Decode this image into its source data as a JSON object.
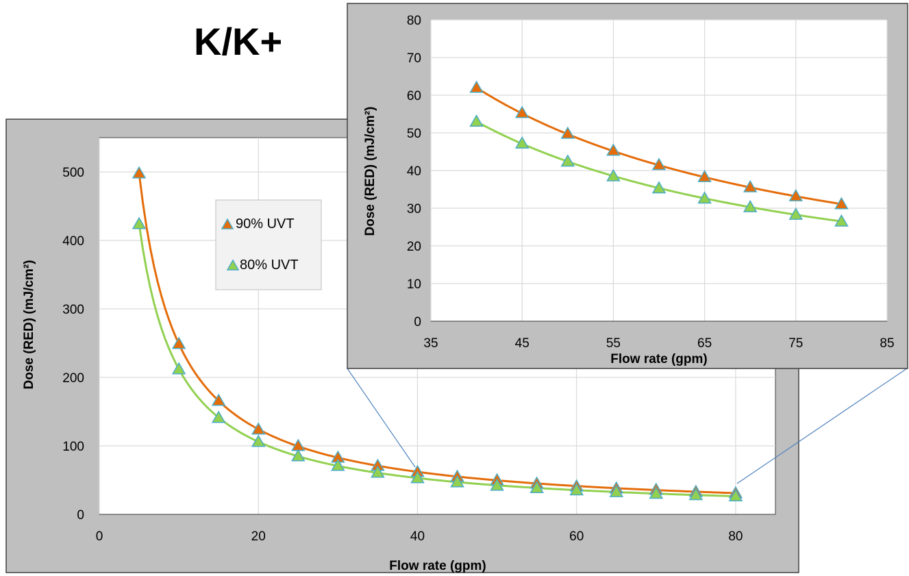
{
  "page_title": "K/K+",
  "colors": {
    "frame_fill": "#bfbfbf",
    "plot_fill": "#ffffff",
    "grid": "#d9d9d9",
    "series_90_line": "#e46c0a",
    "series_80_line": "#92d050",
    "marker_edge": "#4bacc6",
    "zoom_connector": "#4f81bd"
  },
  "legend": {
    "items": [
      "90% UVT",
      "80% UVT"
    ],
    "placement": "inside-upper-middle"
  },
  "chart_data": [
    {
      "type": "scatter",
      "name": "main",
      "xlabel": "Flow rate (gpm)",
      "ylabel": "Dose (RED) (mJ/cm²)",
      "xlim": [
        0,
        85
      ],
      "ylim": [
        0,
        550
      ],
      "xticks": [
        0,
        20,
        40,
        60,
        80
      ],
      "yticks": [
        0,
        100,
        200,
        300,
        400,
        500
      ],
      "grid": true,
      "series": [
        {
          "name": "90% UVT",
          "x": [
            5,
            10,
            15,
            20,
            25,
            30,
            35,
            40,
            45,
            50,
            55,
            60,
            65,
            70,
            75,
            80
          ],
          "values": [
            498,
            249,
            166,
            124,
            100,
            83,
            71,
            62,
            55,
            50,
            45,
            41,
            38,
            36,
            33,
            31
          ]
        },
        {
          "name": "80% UVT",
          "x": [
            5,
            10,
            15,
            20,
            25,
            30,
            35,
            40,
            45,
            50,
            55,
            60,
            65,
            70,
            75,
            80
          ],
          "values": [
            424,
            212,
            141,
            106,
            85,
            71,
            61,
            53,
            47,
            42,
            38.5,
            35.3,
            32.6,
            30.3,
            28.3,
            26.5
          ]
        }
      ]
    },
    {
      "type": "scatter",
      "name": "inset",
      "xlabel": "Flow rate (gpm)",
      "ylabel": "Dose (RED) (mJ/cm²)",
      "xlim": [
        35,
        85
      ],
      "ylim": [
        0,
        80
      ],
      "xticks": [
        35,
        45,
        55,
        65,
        75,
        85
      ],
      "yticks": [
        0,
        10,
        20,
        30,
        40,
        50,
        60,
        70,
        80
      ],
      "grid": true,
      "series": [
        {
          "name": "90% UVT",
          "x": [
            40,
            45,
            50,
            55,
            60,
            65,
            70,
            75,
            80
          ],
          "values": [
            62,
            55.3,
            49.8,
            45.3,
            41.5,
            38.3,
            35.6,
            33.2,
            31.1
          ]
        },
        {
          "name": "80% UVT",
          "x": [
            40,
            45,
            50,
            55,
            60,
            65,
            70,
            75,
            80
          ],
          "values": [
            53,
            47.2,
            42.4,
            38.5,
            35.3,
            32.6,
            30.3,
            28.3,
            26.5
          ]
        }
      ]
    }
  ]
}
